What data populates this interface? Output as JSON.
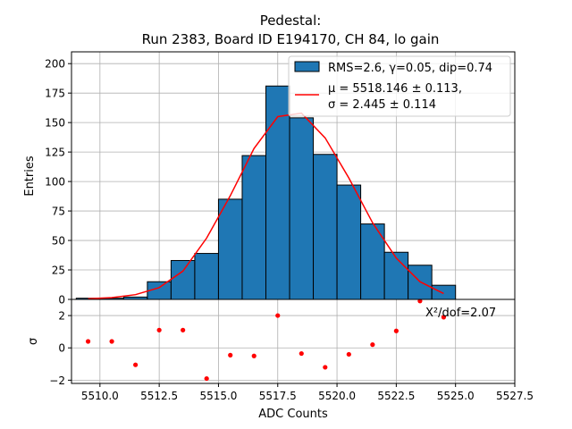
{
  "chart_data": {
    "type": "bar",
    "title_line1": "Pedestal:",
    "title_line2": "Run 2383, Board ID E194170, CH 84, lo gain",
    "xlabel": "ADC Counts",
    "ylabel_top": "Entries",
    "ylabel_bottom": "σ",
    "xlim": [
      5508.8,
      5527.5
    ],
    "ylim_top": [
      0,
      210
    ],
    "ylim_bottom": [
      -2.2,
      3.0
    ],
    "x_ticks": [
      5510.0,
      5512.5,
      5515.0,
      5517.5,
      5520.0,
      5522.5,
      5525.0,
      5527.5
    ],
    "x_tick_labels": [
      "5510.0",
      "5512.5",
      "5515.0",
      "5517.5",
      "5520.0",
      "5522.5",
      "5525.0",
      "5527.5"
    ],
    "y_ticks_top": [
      0,
      25,
      50,
      75,
      100,
      125,
      150,
      175,
      200
    ],
    "y_ticks_bottom": [
      -2,
      0,
      2
    ],
    "grid": true,
    "legend_position": "top-right",
    "histogram": {
      "name": "RMS=2.6, γ=0.05, dip=0.74",
      "bin_edges": [
        5509,
        5510,
        5511,
        5512,
        5513,
        5514,
        5515,
        5516,
        5517,
        5518,
        5519,
        5520,
        5521,
        5522,
        5523,
        5524,
        5525
      ],
      "values": [
        1,
        1,
        2,
        15,
        33,
        39,
        85,
        122,
        181,
        154,
        123,
        97,
        64,
        40,
        29,
        12
      ],
      "color": "#1f77b4"
    },
    "fit": {
      "name_line1": "μ = 5518.146 ± 0.113,",
      "name_line2": "σ = 2.445 ± 0.114",
      "color": "#ff0000",
      "x": [
        5509.5,
        5510.5,
        5511.5,
        5512.5,
        5513.5,
        5514.5,
        5515.5,
        5516.5,
        5517.5,
        5518.5,
        5519.5,
        5520.5,
        5521.5,
        5522.5,
        5523.5,
        5524.5
      ],
      "y": [
        0.5,
        1.5,
        4,
        10,
        24,
        52,
        88,
        128,
        155,
        158,
        137,
        103,
        65,
        35,
        15,
        5
      ]
    },
    "residuals": {
      "x": [
        5509.5,
        5510.5,
        5511.5,
        5512.5,
        5513.5,
        5514.5,
        5515.5,
        5516.5,
        5517.5,
        5518.5,
        5519.5,
        5520.5,
        5521.5,
        5522.5,
        5523.5,
        5524.5
      ],
      "y": [
        0.4,
        0.4,
        -1.05,
        1.1,
        1.1,
        -1.9,
        -0.45,
        -0.5,
        2.0,
        -0.35,
        -1.2,
        -0.4,
        0.2,
        1.05,
        2.9,
        1.9
      ],
      "color": "#ff0000"
    },
    "chi2_label": "X²/dof=2.07"
  }
}
